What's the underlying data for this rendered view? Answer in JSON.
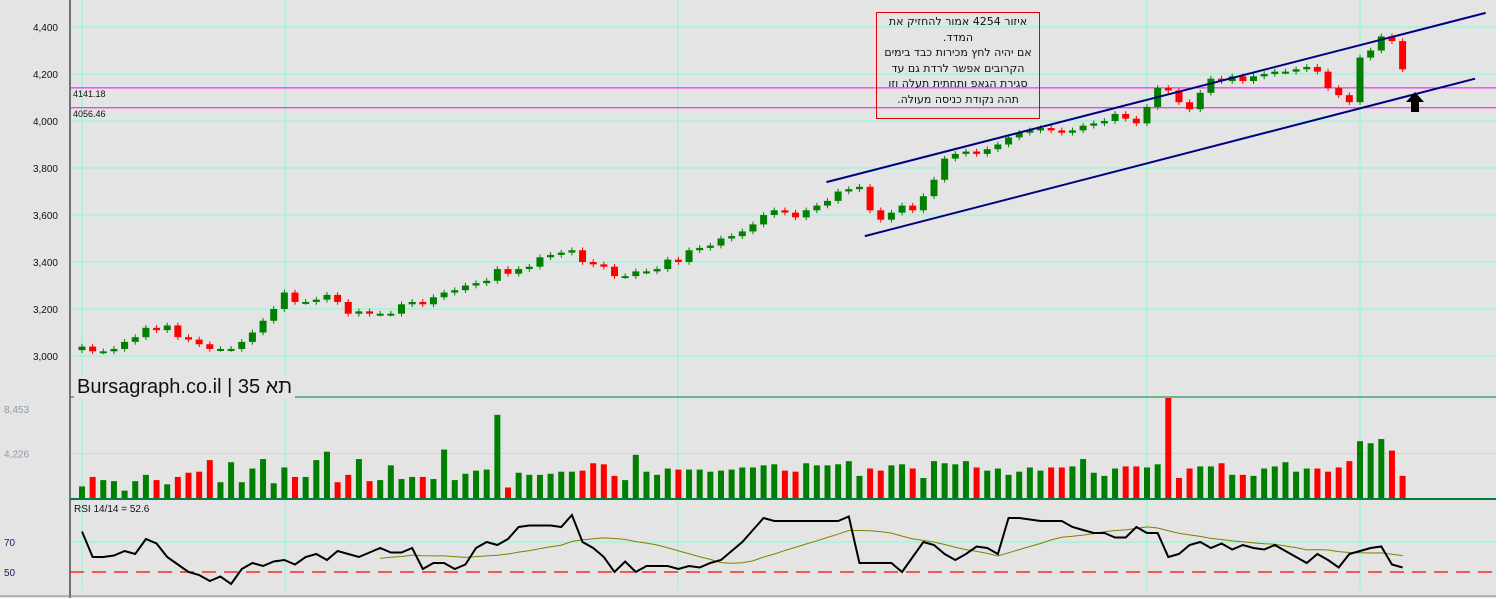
{
  "chart_data": {
    "type": "candlestick",
    "title": "Bursagraph.co.il | תא 35",
    "price_axis": {
      "ticks": [
        4400,
        4200,
        4000,
        3800,
        3600,
        3400,
        3200,
        3000
      ],
      "tick_labels": [
        "4,400",
        "4,200",
        "4,000",
        "3,800",
        "3,600",
        "3,400",
        "3,200",
        "3,000"
      ],
      "range": [
        2920,
        4520
      ]
    },
    "closes": [
      3040,
      3020,
      3020,
      3030,
      3060,
      3080,
      3120,
      3110,
      3130,
      3080,
      3070,
      3050,
      3030,
      3030,
      3030,
      3060,
      3100,
      3150,
      3200,
      3270,
      3230,
      3230,
      3240,
      3260,
      3230,
      3180,
      3190,
      3180,
      3180,
      3180,
      3220,
      3230,
      3220,
      3250,
      3270,
      3280,
      3300,
      3310,
      3320,
      3370,
      3350,
      3370,
      3380,
      3420,
      3430,
      3440,
      3450,
      3400,
      3390,
      3380,
      3340,
      3340,
      3360,
      3360,
      3370,
      3410,
      3400,
      3450,
      3460,
      3470,
      3500,
      3510,
      3530,
      3560,
      3600,
      3620,
      3610,
      3590,
      3620,
      3640,
      3660,
      3700,
      3710,
      3720,
      3620,
      3580,
      3610,
      3640,
      3620,
      3680,
      3750,
      3840,
      3860,
      3870,
      3860,
      3880,
      3900,
      3930,
      3950,
      3960,
      3970,
      3960,
      3950,
      3960,
      3980,
      3990,
      4000,
      4030,
      4010,
      3990,
      4060,
      4140,
      4130,
      4080,
      4050,
      4120,
      4180,
      4170,
      4190,
      4170,
      4190,
      4200,
      4210,
      4210,
      4220,
      4230,
      4210,
      4140,
      4110,
      4080,
      4270,
      4300,
      4360,
      4340,
      4220
    ],
    "horizontal_lines": [
      {
        "value": 4141.18,
        "label": "4141.18",
        "color": "#ff00ff"
      },
      {
        "value": 4056.46,
        "label": "4056.46",
        "color": "#ff00ff"
      }
    ],
    "channel": {
      "color": "#000080",
      "upper": [
        [
          69.9,
          3740
        ],
        [
          131.8,
          4460
        ]
      ],
      "lower": [
        [
          73.5,
          3510
        ],
        [
          130.8,
          4180
        ]
      ]
    },
    "annotation": {
      "lines": [
        "איזור 4254 אמור להחזיק את המדד.",
        "אם יהיה לחץ מכירות כבד בימים הקרובים אפשר לרדת גם עד סגירת הגאפ ותחתית תעלה וזו תהה נקודת כניסה מעולה."
      ]
    },
    "volume": {
      "tick_labels": [
        "8,453",
        "4,226"
      ],
      "ticks": [
        8453,
        4226
      ],
      "values": [
        1100,
        2000,
        1700,
        1600,
        700,
        1600,
        2200,
        1700,
        1300,
        2000,
        2400,
        2500,
        3600,
        1500,
        3400,
        1500,
        2800,
        3700,
        1400,
        2900,
        2000,
        2000,
        3600,
        4400,
        1500,
        2200,
        3700,
        1600,
        1700,
        3100,
        1800,
        2000,
        2000,
        1800,
        4600,
        1700,
        2300,
        2600,
        2700,
        7900,
        1000,
        2400,
        2200,
        2200,
        2300,
        2500,
        2500,
        2600,
        3300,
        3200,
        2100,
        1700,
        4100,
        2500,
        2200,
        2800,
        2700,
        2700,
        2700,
        2500,
        2600,
        2700,
        2900,
        2900,
        3100,
        3200,
        2600,
        2500,
        3300,
        3100,
        3100,
        3200,
        3500,
        2100,
        2800,
        2600,
        3100,
        3200,
        2800,
        1900,
        3500,
        3300,
        3200,
        3500,
        2900,
        2600,
        2800,
        2200,
        2500,
        2900,
        2600,
        2900,
        2900,
        3000,
        3700,
        2400,
        2100,
        2800,
        3000,
        3000,
        2900,
        3200,
        9500,
        1900,
        2800,
        3000,
        3000,
        3300,
        2200,
        2200,
        2100,
        2800,
        3000,
        3400,
        2500,
        2800,
        2800,
        2500,
        2900,
        3500,
        5400,
        5200,
        5600,
        4500,
        2100
      ]
    },
    "rsi": {
      "label": "RSI 14/14 = 52.6",
      "ticks": [
        70,
        50
      ],
      "tick_labels": [
        "70",
        "50"
      ],
      "ma_period": 14,
      "values": [
        77,
        60,
        60,
        61,
        64,
        62,
        72,
        69,
        60,
        55,
        50,
        48,
        44,
        47,
        42,
        52,
        56,
        54,
        57,
        58,
        55,
        60,
        62,
        58,
        64,
        62,
        60,
        63,
        66,
        63,
        63,
        66,
        52,
        56,
        56,
        52,
        55,
        66,
        70,
        68,
        72,
        80,
        81,
        81,
        81,
        80,
        88,
        70,
        66,
        60,
        50,
        57,
        50,
        54,
        54,
        54,
        52,
        54,
        53,
        56,
        58,
        64,
        70,
        78,
        86,
        84,
        84,
        84,
        84,
        84,
        84,
        84,
        87,
        56,
        56,
        56,
        56,
        50,
        60,
        70,
        68,
        62,
        58,
        62,
        67,
        66,
        62,
        86,
        86,
        85,
        84,
        84,
        84,
        80,
        78,
        76,
        76,
        73,
        73,
        80,
        76,
        76,
        60,
        62,
        68,
        70,
        66,
        69,
        65,
        68,
        66,
        65,
        68,
        64,
        60,
        56,
        62,
        58,
        53,
        62,
        64,
        66,
        67,
        55,
        53
      ]
    },
    "colors": {
      "up": "#008000",
      "down": "#ff0000",
      "grid": "#7fffd4",
      "rsi_line": "#000000",
      "rsi_ma": "#808000"
    }
  }
}
